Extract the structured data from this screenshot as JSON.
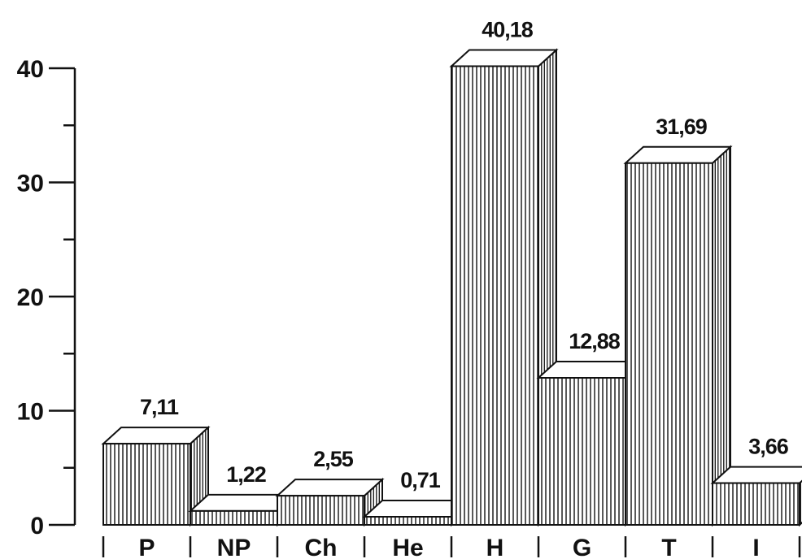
{
  "chart_data": {
    "type": "bar",
    "categories": [
      "P",
      "NP",
      "Ch",
      "He",
      "H",
      "G",
      "T",
      "I"
    ],
    "values": [
      7.11,
      1.22,
      2.55,
      0.71,
      40.18,
      12.88,
      31.69,
      3.66
    ],
    "value_labels": [
      "7,11",
      "1,22",
      "2,55",
      "0,71",
      "40,18",
      "12,88",
      "31,69",
      "3,66"
    ],
    "yticks": [
      0,
      10,
      20,
      30,
      40
    ],
    "ytick_labels": [
      "0",
      "10",
      "20",
      "30",
      "40"
    ],
    "ylim": [
      0,
      43
    ],
    "style": "3d-hatched",
    "colors": {
      "ink": "#111111",
      "background": "#ffffff"
    }
  }
}
